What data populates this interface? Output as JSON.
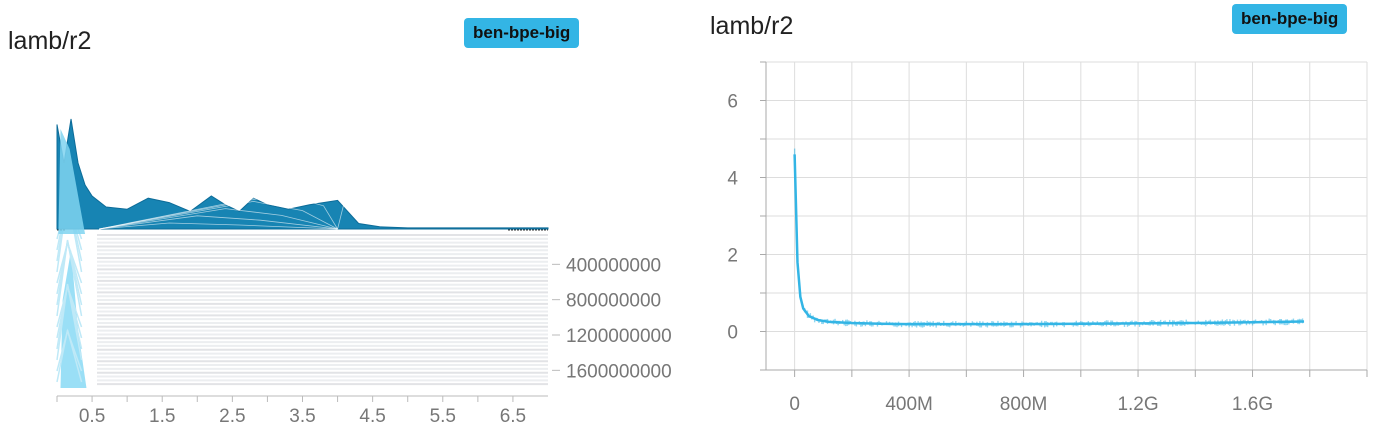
{
  "chart_data": [
    {
      "type": "histogram",
      "title": "lamb/r2",
      "run_label": "ben-bpe-big",
      "run_color": "#33b5e5",
      "xlim": [
        0,
        7
      ],
      "x_ticks": [
        "0.5",
        "1.5",
        "2.5",
        "3.5",
        "4.5",
        "5.5",
        "6.5"
      ],
      "x_tick_values": [
        0.5,
        1.5,
        2.5,
        3.5,
        4.5,
        5.5,
        6.5
      ],
      "step_ticks": [
        "400000000",
        "800000000",
        "1200000000",
        "1600000000"
      ],
      "step_tick_values": [
        400000000,
        800000000,
        1200000000,
        1600000000
      ],
      "step_range": [
        0,
        1800000000
      ],
      "front_distribution": {
        "x": [
          0,
          0.1,
          0.2,
          0.3,
          0.4,
          0.5,
          0.7,
          1.0,
          1.3,
          1.6,
          1.9,
          2.2,
          2.4,
          2.6,
          2.8,
          3.0,
          3.3,
          3.6,
          4.0,
          4.3,
          4.6,
          5.0,
          6.0,
          7.0
        ],
        "y": [
          0.95,
          0.6,
          1.0,
          0.6,
          0.4,
          0.3,
          0.2,
          0.18,
          0.28,
          0.24,
          0.16,
          0.3,
          0.22,
          0.16,
          0.28,
          0.22,
          0.18,
          0.22,
          0.26,
          0.05,
          0.02,
          0.01,
          0.01,
          0.01
        ]
      }
    },
    {
      "type": "line",
      "title": "lamb/r2",
      "run_label": "ben-bpe-big",
      "run_color": "#33b5e5",
      "xlim": [
        -100000000,
        2000000000
      ],
      "ylim": [
        -1,
        7
      ],
      "x_ticks": [
        "0",
        "400M",
        "800M",
        "1.2G",
        "1.6G"
      ],
      "x_tick_values": [
        0,
        400000000,
        800000000,
        1200000000,
        1600000000
      ],
      "y_ticks": [
        "0",
        "2",
        "4",
        "6"
      ],
      "y_tick_values": [
        0,
        2,
        4,
        6
      ],
      "grid": true,
      "series": [
        {
          "x": [
            0,
            5000000,
            10000000,
            20000000,
            30000000,
            50000000,
            80000000,
            120000000,
            200000000,
            300000000,
            400000000,
            600000000,
            800000000,
            1000000000,
            1200000000,
            1400000000,
            1600000000,
            1780000000
          ],
          "y": [
            4.6,
            3.2,
            1.8,
            0.9,
            0.6,
            0.4,
            0.3,
            0.25,
            0.22,
            0.2,
            0.19,
            0.19,
            0.19,
            0.2,
            0.21,
            0.22,
            0.24,
            0.26
          ]
        }
      ]
    }
  ]
}
